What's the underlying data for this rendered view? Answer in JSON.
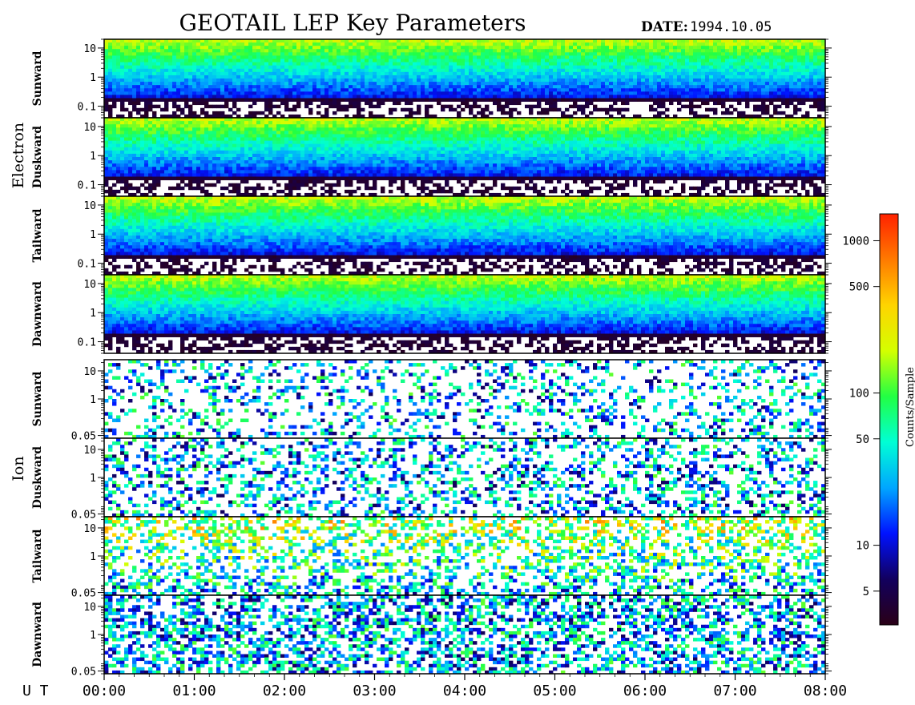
{
  "chart_data": {
    "type": "heatmap",
    "title": "GEOTAIL LEP Key Parameters",
    "date_label": "DATE:",
    "date_value": "1994.10.05",
    "x_axis": {
      "label": "U T",
      "ticks": [
        "00:00",
        "01:00",
        "02:00",
        "03:00",
        "04:00",
        "05:00",
        "06:00",
        "07:00",
        "08:00"
      ],
      "range_hours": [
        0,
        8
      ]
    },
    "colorbar": {
      "label": "Counts/Sample",
      "scale": "log",
      "range": [
        3,
        1500
      ],
      "ticks": [
        {
          "value": 5,
          "label": "5"
        },
        {
          "value": 10,
          "label": "10"
        },
        {
          "value": 50,
          "label": "50"
        },
        {
          "value": 100,
          "label": "100"
        },
        {
          "value": 500,
          "label": "500"
        },
        {
          "value": 1000,
          "label": "1000"
        }
      ],
      "colormap": [
        "#2a0017",
        "#12005e",
        "#0012ff",
        "#00a6ff",
        "#00ffd5",
        "#22ff44",
        "#d4ff00",
        "#ffd400",
        "#ff7a00",
        "#ff2200"
      ]
    },
    "groups": [
      {
        "name": "Electron",
        "y_scale": "log",
        "y_range": [
          0.04,
          20
        ],
        "y_ticks": [
          {
            "value": 10,
            "label": "10"
          },
          {
            "value": 1,
            "label": "1"
          },
          {
            "value": 0.1,
            "label": "0.1"
          }
        ],
        "panels": [
          {
            "label": "Sunward"
          },
          {
            "label": "Duskward"
          },
          {
            "label": "Tailward"
          },
          {
            "label": "Dawnward"
          }
        ]
      },
      {
        "name": "Ion",
        "y_scale": "log",
        "y_range": [
          0.04,
          25
        ],
        "y_ticks": [
          {
            "value": 10,
            "label": "10"
          },
          {
            "value": 1,
            "label": "1"
          },
          {
            "value": 0.05,
            "label": "0.05"
          }
        ],
        "panels": [
          {
            "label": "Sunward"
          },
          {
            "label": "Duskward"
          },
          {
            "label": "Tailward"
          },
          {
            "label": "Dawnward"
          }
        ]
      }
    ]
  }
}
